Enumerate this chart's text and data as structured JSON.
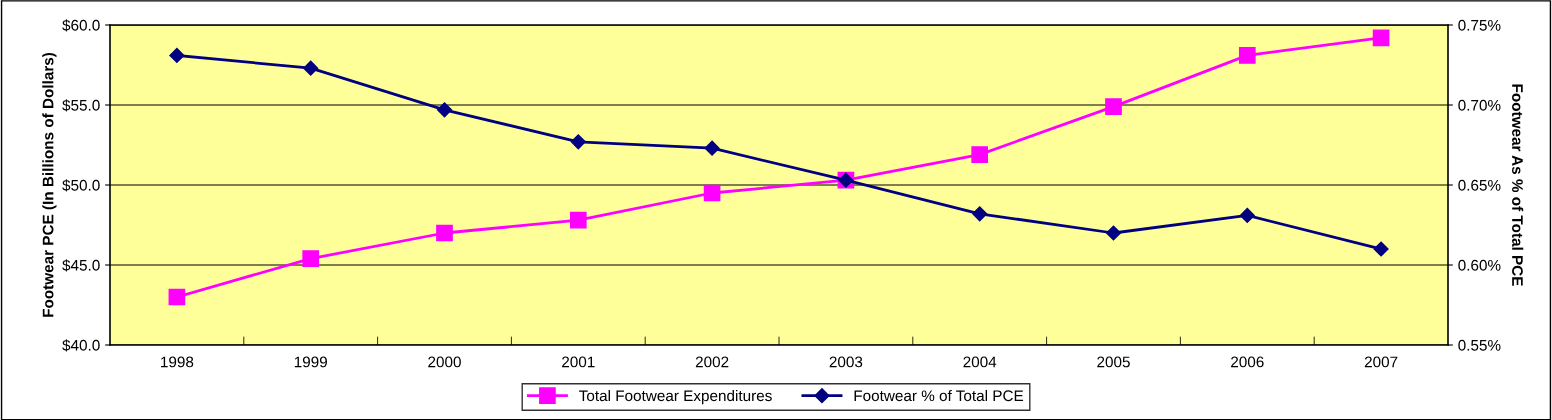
{
  "chart_data": {
    "type": "line",
    "ylabel": "Footwear PCE (In Billions of Dollars)",
    "y2label": "Footwear As % of Total PCE",
    "categories": [
      "1998",
      "1999",
      "2000",
      "2001",
      "2002",
      "2003",
      "2004",
      "2005",
      "2006",
      "2007"
    ],
    "series": [
      {
        "name": "Total Footwear Expenditures",
        "color": "#ff00ff",
        "marker": "square",
        "values": [
          43.0,
          45.4,
          47.0,
          47.8,
          49.5,
          50.3,
          51.9,
          54.9,
          58.1,
          59.2
        ]
      },
      {
        "name": "Footwear % of Total PCE",
        "color": "#000080",
        "marker": "diamond",
        "axis": "y2",
        "values": [
          0.731,
          0.723,
          0.697,
          0.677,
          0.673,
          0.653,
          0.632,
          0.62,
          0.631,
          0.61
        ]
      }
    ],
    "ylim": [
      40,
      60
    ],
    "yticks": [
      {
        "value": 40,
        "label": "$40.0"
      },
      {
        "value": 45,
        "label": "$45.0"
      },
      {
        "value": 50,
        "label": "$50.0"
      },
      {
        "value": 55,
        "label": "$55.0"
      },
      {
        "value": 60,
        "label": "$60.0"
      }
    ],
    "y2lim": [
      0.55,
      0.75
    ],
    "y2ticks": [
      {
        "value": 0.55,
        "label": "0.55%"
      },
      {
        "value": 0.6,
        "label": "0.60%"
      },
      {
        "value": 0.65,
        "label": "0.65%"
      },
      {
        "value": 0.7,
        "label": "0.70%"
      },
      {
        "value": 0.75,
        "label": "0.75%"
      }
    ],
    "grid": "y",
    "legend": "bottom",
    "line_style": "solid"
  }
}
